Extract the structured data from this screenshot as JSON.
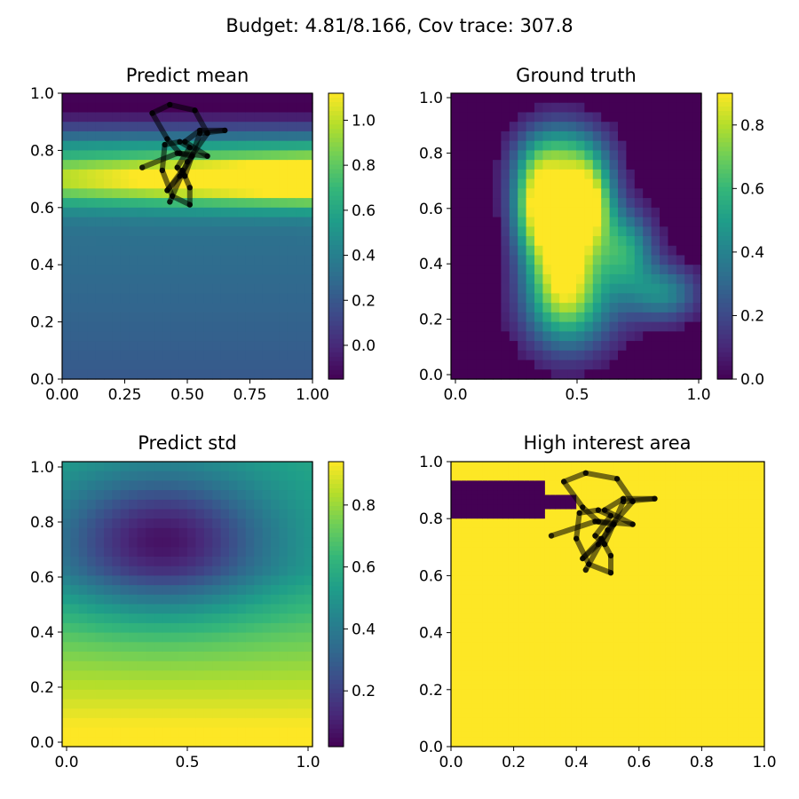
{
  "figure": {
    "suptitle": "Budget: 4.81/8.166,  Cov trace: 307.8"
  },
  "colormap": [
    "#440154",
    "#482878",
    "#3e4989",
    "#31688e",
    "#26828e",
    "#1f9e89",
    "#35b779",
    "#6ece58",
    "#b5de2b",
    "#fde725"
  ],
  "path_color": "#000000",
  "chart_data": [
    {
      "type": "heatmap",
      "title": "Predict mean",
      "xlabel": "",
      "ylabel": "",
      "xlim": [
        0,
        1
      ],
      "ylim": [
        0,
        1
      ],
      "xticks": [
        "0.00",
        "0.25",
        "0.50",
        "0.75",
        "1.00"
      ],
      "yticks": [
        "0.0",
        "0.2",
        "0.4",
        "0.6",
        "0.8",
        "1.0"
      ],
      "color_range": [
        -0.15,
        1.12
      ],
      "colorbar_ticks": [
        "0.0",
        "0.2",
        "0.4",
        "0.6",
        "0.8",
        "1.0"
      ],
      "grid": false,
      "field": "predicted mean, bright band near y=0.7, dark near y=0.95",
      "overlay_path": [
        [
          0.32,
          0.74
        ],
        [
          0.46,
          0.79
        ],
        [
          0.52,
          0.78
        ],
        [
          0.47,
          0.71
        ],
        [
          0.42,
          0.66
        ],
        [
          0.48,
          0.73
        ],
        [
          0.51,
          0.67
        ],
        [
          0.51,
          0.61
        ],
        [
          0.44,
          0.64
        ],
        [
          0.4,
          0.73
        ],
        [
          0.41,
          0.82
        ],
        [
          0.47,
          0.83
        ],
        [
          0.51,
          0.81
        ],
        [
          0.46,
          0.74
        ],
        [
          0.49,
          0.71
        ],
        [
          0.55,
          0.86
        ],
        [
          0.65,
          0.87
        ],
        [
          0.55,
          0.87
        ],
        [
          0.49,
          0.83
        ],
        [
          0.58,
          0.78
        ],
        [
          0.47,
          0.79
        ],
        [
          0.42,
          0.84
        ],
        [
          0.36,
          0.93
        ],
        [
          0.43,
          0.96
        ],
        [
          0.53,
          0.94
        ],
        [
          0.58,
          0.86
        ],
        [
          0.5,
          0.76
        ],
        [
          0.43,
          0.62
        ]
      ]
    },
    {
      "type": "heatmap",
      "title": "Ground truth",
      "xlabel": "",
      "ylabel": "",
      "xlim": [
        0,
        1
      ],
      "ylim": [
        0,
        1
      ],
      "xticks": [
        "0.0",
        "0.5",
        "1.0"
      ],
      "yticks": [
        "0.0",
        "0.2",
        "0.4",
        "0.6",
        "0.8",
        "1.0"
      ],
      "color_range": [
        0.0,
        0.9
      ],
      "colorbar_ticks": [
        "0.0",
        "0.2",
        "0.4",
        "0.6",
        "0.8"
      ],
      "grid": false,
      "field": "ground truth blob centred near (0.45, 0.5)"
    },
    {
      "type": "heatmap",
      "title": "Predict std",
      "xlabel": "",
      "ylabel": "",
      "xlim": [
        0,
        1
      ],
      "ylim": [
        0,
        1
      ],
      "xticks": [
        "0.0",
        "0.5",
        "1.0"
      ],
      "yticks": [
        "0.0",
        "0.2",
        "0.4",
        "0.6",
        "0.8",
        "1.0"
      ],
      "color_range": [
        0.02,
        0.94
      ],
      "colorbar_ticks": [
        "0.2",
        "0.4",
        "0.6",
        "0.8"
      ],
      "grid": false,
      "field": "prediction std, minimum near (0.4, 0.72), high toward bottom"
    },
    {
      "type": "heatmap",
      "title": "High interest area",
      "xlabel": "",
      "ylabel": "",
      "xlim": [
        0,
        1
      ],
      "ylim": [
        0,
        1
      ],
      "xticks": [
        "0.0",
        "0.2",
        "0.4",
        "0.6",
        "0.8",
        "1.0"
      ],
      "yticks": [
        "0.0",
        "0.2",
        "0.4",
        "0.6",
        "0.8",
        "1.0"
      ],
      "grid": false,
      "field": "binary mask: all high except region x 0-0.4, y 0.8-0.93",
      "low_regions": [
        {
          "x": [
            0.0,
            0.3
          ],
          "y": [
            0.8,
            0.93
          ]
        },
        {
          "x": [
            0.3,
            0.4
          ],
          "y": [
            0.83,
            0.89
          ]
        },
        {
          "x": [
            0.0,
            0.27
          ],
          "y": [
            0.8,
            0.83
          ]
        }
      ],
      "overlay_path": [
        [
          0.32,
          0.74
        ],
        [
          0.46,
          0.79
        ],
        [
          0.52,
          0.78
        ],
        [
          0.47,
          0.71
        ],
        [
          0.42,
          0.66
        ],
        [
          0.48,
          0.73
        ],
        [
          0.51,
          0.67
        ],
        [
          0.51,
          0.61
        ],
        [
          0.44,
          0.64
        ],
        [
          0.4,
          0.73
        ],
        [
          0.41,
          0.82
        ],
        [
          0.47,
          0.83
        ],
        [
          0.51,
          0.81
        ],
        [
          0.46,
          0.74
        ],
        [
          0.49,
          0.71
        ],
        [
          0.55,
          0.86
        ],
        [
          0.65,
          0.87
        ],
        [
          0.55,
          0.87
        ],
        [
          0.49,
          0.83
        ],
        [
          0.58,
          0.78
        ],
        [
          0.47,
          0.79
        ],
        [
          0.42,
          0.84
        ],
        [
          0.36,
          0.93
        ],
        [
          0.43,
          0.96
        ],
        [
          0.53,
          0.94
        ],
        [
          0.58,
          0.86
        ],
        [
          0.5,
          0.76
        ],
        [
          0.43,
          0.62
        ]
      ]
    }
  ]
}
